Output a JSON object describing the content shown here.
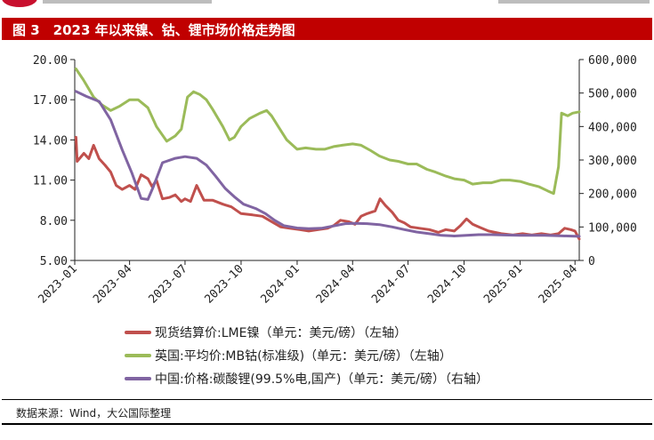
{
  "figure_title": "图 3　2023 年以来镍、钴、锂市场价格走势图",
  "source_note": "数据来源：Wind，大公国际整理",
  "colors": {
    "title_bg": "#c00000",
    "series": [
      "#c0504d",
      "#9bbb59",
      "#8064a2"
    ]
  },
  "chart_data": {
    "type": "line",
    "title": "2023 年以来镍、钴、锂市场价格走势图",
    "x_range": [
      "2023-01",
      "2025-04"
    ],
    "x_ticks": [
      "2023-01",
      "2023-04",
      "2023-07",
      "2023-10",
      "2024-01",
      "2024-04",
      "2024-07",
      "2024-10",
      "2025-01",
      "2025-04"
    ],
    "y_left": {
      "min": 5,
      "max": 20,
      "ticks": [
        "5.00",
        "8.00",
        "11.00",
        "14.00",
        "17.00",
        "20.00"
      ]
    },
    "y_right": {
      "min": 0,
      "max": 600000,
      "ticks": [
        "0",
        "100,000",
        "200,000",
        "300,000",
        "400,000",
        "500,000",
        "600,000"
      ]
    },
    "grid": false,
    "legend_position": "bottom",
    "series": [
      {
        "name": "现货结算价:LME镍（单元：美元/磅）（左轴）",
        "axis": "left",
        "color": "#c0504d",
        "points": [
          [
            "2023-01-03",
            14.2
          ],
          [
            "2023-01-05",
            12.4
          ],
          [
            "2023-01-16",
            13.0
          ],
          [
            "2023-01-24",
            12.6
          ],
          [
            "2023-02-01",
            13.6
          ],
          [
            "2023-02-10",
            12.6
          ],
          [
            "2023-02-20",
            12.1
          ],
          [
            "2023-03-01",
            11.6
          ],
          [
            "2023-03-10",
            10.6
          ],
          [
            "2023-03-20",
            10.3
          ],
          [
            "2023-04-01",
            10.6
          ],
          [
            "2023-04-10",
            10.3
          ],
          [
            "2023-04-20",
            11.4
          ],
          [
            "2023-05-01",
            11.1
          ],
          [
            "2023-05-08",
            10.5
          ],
          [
            "2023-05-15",
            11.0
          ],
          [
            "2023-05-25",
            9.6
          ],
          [
            "2023-06-05",
            9.7
          ],
          [
            "2023-06-15",
            9.9
          ],
          [
            "2023-06-25",
            9.4
          ],
          [
            "2023-07-01",
            9.6
          ],
          [
            "2023-07-10",
            9.4
          ],
          [
            "2023-07-20",
            10.6
          ],
          [
            "2023-08-01",
            9.5
          ],
          [
            "2023-08-15",
            9.5
          ],
          [
            "2023-09-01",
            9.2
          ],
          [
            "2023-09-15",
            9.0
          ],
          [
            "2023-10-01",
            8.5
          ],
          [
            "2023-10-20",
            8.4
          ],
          [
            "2023-11-05",
            8.3
          ],
          [
            "2023-11-20",
            7.9
          ],
          [
            "2023-12-05",
            7.5
          ],
          [
            "2023-12-20",
            7.4
          ],
          [
            "2024-01-05",
            7.3
          ],
          [
            "2024-01-20",
            7.2
          ],
          [
            "2024-02-05",
            7.3
          ],
          [
            "2024-02-20",
            7.4
          ],
          [
            "2024-03-01",
            7.6
          ],
          [
            "2024-03-12",
            8.0
          ],
          [
            "2024-03-25",
            7.9
          ],
          [
            "2024-04-05",
            7.7
          ],
          [
            "2024-04-15",
            8.3
          ],
          [
            "2024-04-25",
            8.5
          ],
          [
            "2024-05-08",
            8.7
          ],
          [
            "2024-05-16",
            9.6
          ],
          [
            "2024-05-25",
            9.1
          ],
          [
            "2024-06-05",
            8.6
          ],
          [
            "2024-06-15",
            8.0
          ],
          [
            "2024-06-25",
            7.8
          ],
          [
            "2024-07-05",
            7.5
          ],
          [
            "2024-07-20",
            7.4
          ],
          [
            "2024-08-05",
            7.3
          ],
          [
            "2024-08-20",
            7.1
          ],
          [
            "2024-09-01",
            7.3
          ],
          [
            "2024-09-15",
            7.2
          ],
          [
            "2024-09-25",
            7.6
          ],
          [
            "2024-10-05",
            8.1
          ],
          [
            "2024-10-15",
            7.7
          ],
          [
            "2024-10-25",
            7.5
          ],
          [
            "2024-11-10",
            7.2
          ],
          [
            "2024-12-01",
            7.0
          ],
          [
            "2024-12-20",
            6.9
          ],
          [
            "2025-01-05",
            7.0
          ],
          [
            "2025-01-20",
            6.9
          ],
          [
            "2025-02-05",
            7.0
          ],
          [
            "2025-02-20",
            6.9
          ],
          [
            "2025-03-05",
            7.0
          ],
          [
            "2025-03-15",
            7.4
          ],
          [
            "2025-03-25",
            7.3
          ],
          [
            "2025-04-01",
            7.2
          ],
          [
            "2025-04-08",
            6.6
          ]
        ]
      },
      {
        "name": "英国:平均价:MB钴(标准级)（单元：美元/磅）（左轴）",
        "axis": "left",
        "color": "#9bbb59",
        "points": [
          [
            "2023-01-03",
            19.3
          ],
          [
            "2023-01-15",
            18.5
          ],
          [
            "2023-02-01",
            17.2
          ],
          [
            "2023-02-15",
            16.6
          ],
          [
            "2023-03-01",
            16.2
          ],
          [
            "2023-03-15",
            16.5
          ],
          [
            "2023-04-01",
            17.0
          ],
          [
            "2023-04-15",
            17.0
          ],
          [
            "2023-05-01",
            16.4
          ],
          [
            "2023-05-15",
            15.0
          ],
          [
            "2023-06-01",
            13.9
          ],
          [
            "2023-06-15",
            14.3
          ],
          [
            "2023-06-25",
            14.8
          ],
          [
            "2023-07-05",
            17.2
          ],
          [
            "2023-07-15",
            17.6
          ],
          [
            "2023-07-25",
            17.4
          ],
          [
            "2023-08-05",
            17.0
          ],
          [
            "2023-08-15",
            16.3
          ],
          [
            "2023-09-01",
            15.0
          ],
          [
            "2023-09-12",
            14.0
          ],
          [
            "2023-09-20",
            14.2
          ],
          [
            "2023-10-01",
            15.0
          ],
          [
            "2023-10-15",
            15.6
          ],
          [
            "2023-11-01",
            16.0
          ],
          [
            "2023-11-12",
            16.2
          ],
          [
            "2023-11-20",
            15.8
          ],
          [
            "2023-12-01",
            15.0
          ],
          [
            "2023-12-15",
            14.0
          ],
          [
            "2024-01-01",
            13.3
          ],
          [
            "2024-01-15",
            13.4
          ],
          [
            "2024-02-01",
            13.3
          ],
          [
            "2024-02-15",
            13.3
          ],
          [
            "2024-03-01",
            13.5
          ],
          [
            "2024-03-15",
            13.6
          ],
          [
            "2024-04-01",
            13.7
          ],
          [
            "2024-04-15",
            13.6
          ],
          [
            "2024-05-01",
            13.2
          ],
          [
            "2024-05-15",
            12.8
          ],
          [
            "2024-06-01",
            12.5
          ],
          [
            "2024-06-15",
            12.4
          ],
          [
            "2024-07-01",
            12.2
          ],
          [
            "2024-07-15",
            12.2
          ],
          [
            "2024-08-01",
            11.8
          ],
          [
            "2024-08-15",
            11.6
          ],
          [
            "2024-09-01",
            11.3
          ],
          [
            "2024-09-15",
            11.1
          ],
          [
            "2024-10-01",
            11.0
          ],
          [
            "2024-10-15",
            10.7
          ],
          [
            "2024-11-01",
            10.8
          ],
          [
            "2024-11-15",
            10.8
          ],
          [
            "2024-12-01",
            11.0
          ],
          [
            "2024-12-15",
            11.0
          ],
          [
            "2025-01-01",
            10.9
          ],
          [
            "2025-01-15",
            10.7
          ],
          [
            "2025-02-01",
            10.5
          ],
          [
            "2025-02-15",
            10.2
          ],
          [
            "2025-02-25",
            10.0
          ],
          [
            "2025-03-05",
            12.0
          ],
          [
            "2025-03-10",
            16.0
          ],
          [
            "2025-03-20",
            15.8
          ],
          [
            "2025-03-28",
            16.0
          ],
          [
            "2025-04-08",
            16.1
          ]
        ]
      },
      {
        "name": "中国:价格:碳酸锂(99.5%电,国产)（单元：美元/磅）（右轴）",
        "axis": "right",
        "color": "#8064a2",
        "points": [
          [
            "2023-01-03",
            505000
          ],
          [
            "2023-01-20",
            490000
          ],
          [
            "2023-02-10",
            475000
          ],
          [
            "2023-03-01",
            420000
          ],
          [
            "2023-03-20",
            330000
          ],
          [
            "2023-04-05",
            260000
          ],
          [
            "2023-04-20",
            185000
          ],
          [
            "2023-05-01",
            182000
          ],
          [
            "2023-05-10",
            220000
          ],
          [
            "2023-05-25",
            292000
          ],
          [
            "2023-06-15",
            305000
          ],
          [
            "2023-07-01",
            310000
          ],
          [
            "2023-07-20",
            305000
          ],
          [
            "2023-08-05",
            285000
          ],
          [
            "2023-08-20",
            252000
          ],
          [
            "2023-09-05",
            215000
          ],
          [
            "2023-09-20",
            190000
          ],
          [
            "2023-10-05",
            168000
          ],
          [
            "2023-10-25",
            155000
          ],
          [
            "2023-11-10",
            140000
          ],
          [
            "2023-11-25",
            120000
          ],
          [
            "2023-12-10",
            104000
          ],
          [
            "2024-01-01",
            97000
          ],
          [
            "2024-01-20",
            95000
          ],
          [
            "2024-02-10",
            96000
          ],
          [
            "2024-03-01",
            103000
          ],
          [
            "2024-03-20",
            110000
          ],
          [
            "2024-04-05",
            111000
          ],
          [
            "2024-04-25",
            110000
          ],
          [
            "2024-05-15",
            107000
          ],
          [
            "2024-06-05",
            100000
          ],
          [
            "2024-06-25",
            92000
          ],
          [
            "2024-07-15",
            85000
          ],
          [
            "2024-08-05",
            80000
          ],
          [
            "2024-08-25",
            75000
          ],
          [
            "2024-09-15",
            73000
          ],
          [
            "2024-10-05",
            75000
          ],
          [
            "2024-10-25",
            77000
          ],
          [
            "2024-11-15",
            77000
          ],
          [
            "2024-12-05",
            76000
          ],
          [
            "2025-01-01",
            75000
          ],
          [
            "2025-01-20",
            75000
          ],
          [
            "2025-02-10",
            75000
          ],
          [
            "2025-03-01",
            74000
          ],
          [
            "2025-03-20",
            73000
          ],
          [
            "2025-04-08",
            72000
          ]
        ]
      }
    ]
  }
}
